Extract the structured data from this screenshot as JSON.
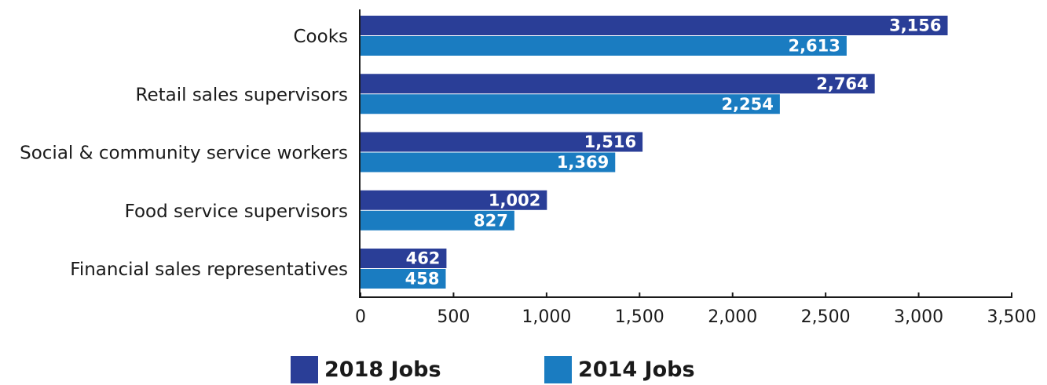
{
  "chart_data": {
    "type": "bar",
    "orientation": "horizontal",
    "categories": [
      "Cooks",
      "Retail sales supervisors",
      "Social & community service workers",
      "Food service supervisors",
      "Financial sales representatives"
    ],
    "series": [
      {
        "name": "2018 Jobs",
        "color": "#2a3e97",
        "values": [
          3156,
          2764,
          1516,
          1002,
          462
        ]
      },
      {
        "name": "2014 Jobs",
        "color": "#1a7cc1",
        "values": [
          2613,
          2254,
          1369,
          827,
          458
        ]
      }
    ],
    "data_labels": [
      [
        "3,156",
        "2,764",
        "1,516",
        "1,002",
        "462"
      ],
      [
        "2,613",
        "2,254",
        "1,369",
        "827",
        "458"
      ]
    ],
    "xlim": [
      0,
      3500
    ],
    "x_ticks": [
      0,
      500,
      1000,
      1500,
      2000,
      2500,
      3000,
      3500
    ],
    "x_tick_labels": [
      "0",
      "500",
      "1,000",
      "1,500",
      "2,000",
      "2,500",
      "3,000",
      "3,500"
    ],
    "grid": false,
    "legend_position": "bottom",
    "title": "",
    "xlabel": "",
    "ylabel": ""
  },
  "legend": {
    "item_2018": "2018 Jobs",
    "item_2014": "2014 Jobs"
  }
}
